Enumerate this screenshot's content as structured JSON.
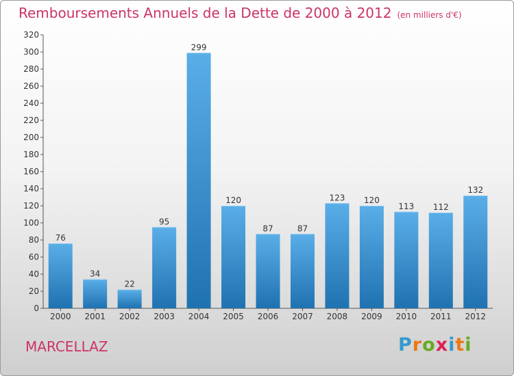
{
  "header": {
    "title": "Remboursements Annuels de la Dette de 2000 à 2012",
    "subtitle": "(en milliers d'€)"
  },
  "commune_name": "MARCELLAZ",
  "brand": {
    "letters": [
      "P",
      "r",
      "o",
      "x",
      "i",
      "t",
      "i"
    ],
    "colors": [
      "#3399cc",
      "#ee7711",
      "#66aa22",
      "#dd2255",
      "#3399cc",
      "#ee7711",
      "#66aa22"
    ]
  },
  "colors": {
    "bar_light": "#5aaee8",
    "bar_dark": "#1f72b0",
    "accent": "#cc3366"
  },
  "chart_data": {
    "type": "bar",
    "categories": [
      "2000",
      "2001",
      "2002",
      "2003",
      "2004",
      "2005",
      "2006",
      "2007",
      "2008",
      "2009",
      "2010",
      "2011",
      "2012"
    ],
    "values": [
      76,
      34,
      22,
      95,
      299,
      120,
      87,
      87,
      123,
      120,
      113,
      112,
      132
    ],
    "title": "Remboursements Annuels de la Dette de 2000 à 2012",
    "subtitle": "(en milliers d'€)",
    "ylim": [
      0,
      320
    ],
    "yticks": [
      0,
      20,
      40,
      60,
      80,
      100,
      120,
      140,
      160,
      180,
      200,
      220,
      240,
      260,
      280,
      300,
      320
    ],
    "grid": false,
    "data_labels": true
  }
}
